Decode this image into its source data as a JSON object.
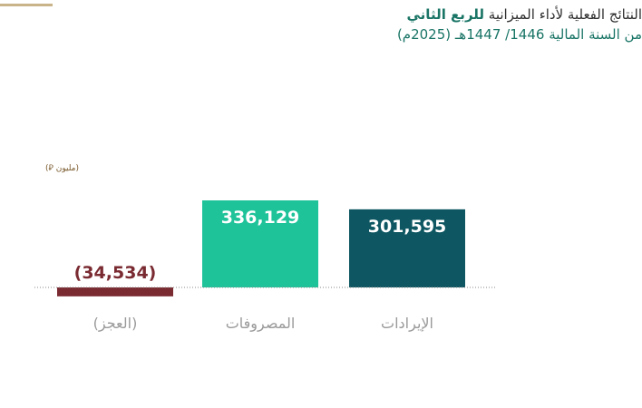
{
  "header": {
    "title_prefix": "النتائج الفعلية لأداء الميزانية ",
    "title_highlight": "للربع الثاني",
    "subtitle": "من السنة المالية 1446/ 1447هـ (2025م)"
  },
  "unit_label": "(مليون ⃁)",
  "colors": {
    "deficit": "#7a2b32",
    "expenses": "#1fc39a",
    "revenues": "#0e5762",
    "accent": "#1a7566"
  },
  "chart_data": {
    "type": "bar",
    "categories": [
      "(العجز)",
      "المصروفات",
      "الإيرادات"
    ],
    "values": [
      -34534,
      336129,
      301595
    ],
    "value_labels": [
      "(34,534)",
      "336,129",
      "301,595"
    ],
    "label_placement": [
      "outside",
      "inside",
      "inside"
    ],
    "ylim": [
      -34534,
      336129
    ],
    "zero_line": "dotted",
    "grid": false,
    "legend": "none"
  }
}
